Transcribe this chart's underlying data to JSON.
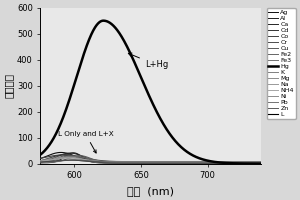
{
  "xlabel": "波长  (nm)",
  "ylabel": "荧光强度",
  "xlim": [
    575,
    740
  ],
  "ylim": [
    0,
    600
  ],
  "yticks": [
    0,
    100,
    200,
    300,
    400,
    500,
    600
  ],
  "xticks": [
    600,
    650,
    700
  ],
  "hg_label": "L+Hg",
  "low_label": "L Only and L+X",
  "legend_entries": [
    "Ag",
    "Al",
    "Ca",
    "Cd",
    "Co",
    "Cr",
    "Cu",
    "Fe2",
    "Fe3",
    "Hg",
    "K",
    "Mg",
    "Na",
    "NH4",
    "Ni",
    "Pb",
    "Zn",
    "L"
  ],
  "background_color": "#d8d8d8",
  "plot_bg_color": "#e8e8e8"
}
